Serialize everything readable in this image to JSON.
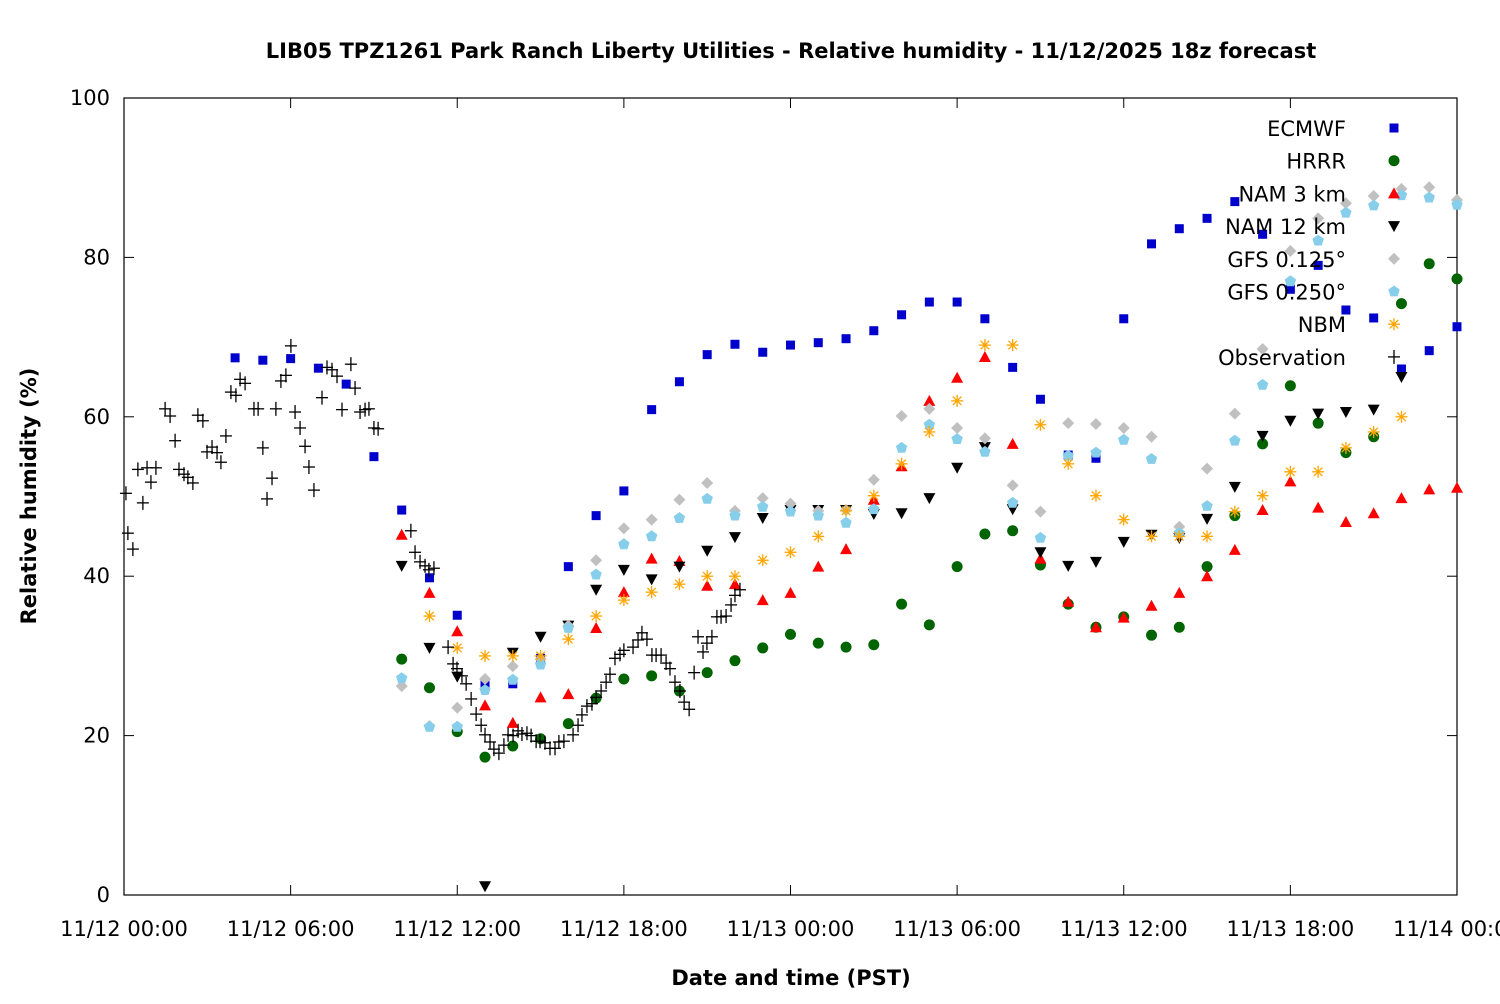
{
  "chart_data": {
    "type": "scatter",
    "title": "LIB05 TPZ1261 Park Ranch Liberty Utilities - Relative humidity - 11/12/2025 18z forecast",
    "xlabel": "Date and time (PST)",
    "ylabel": "Relative humidity (%)",
    "x_unit": "hours since 11/12 00:00",
    "xlim": [
      0,
      48
    ],
    "ylim": [
      0,
      100
    ],
    "grid": false,
    "legend_placement": "top-right",
    "x_ticks": [
      {
        "value": 0,
        "label": "11/12 00:00"
      },
      {
        "value": 6,
        "label": "11/12 06:00"
      },
      {
        "value": 12,
        "label": "11/12 12:00"
      },
      {
        "value": 18,
        "label": "11/12 18:00"
      },
      {
        "value": 24,
        "label": "11/13 00:00"
      },
      {
        "value": 30,
        "label": "11/13 06:00"
      },
      {
        "value": 36,
        "label": "11/13 12:00"
      },
      {
        "value": 42,
        "label": "11/13 18:00"
      },
      {
        "value": 48,
        "label": "11/14 00:00"
      }
    ],
    "y_ticks": [
      {
        "value": 0,
        "label": "0"
      },
      {
        "value": 20,
        "label": "20"
      },
      {
        "value": 40,
        "label": "40"
      },
      {
        "value": 60,
        "label": "60"
      },
      {
        "value": 80,
        "label": "80"
      },
      {
        "value": 100,
        "label": "100"
      }
    ],
    "series": [
      {
        "name": "ECMWF",
        "marker": "square",
        "color": "#0000cc",
        "start_hour": 4,
        "values": [
          67.4,
          67.1,
          67.3,
          66.1,
          64.1,
          55.0,
          48.3,
          39.8,
          35.1,
          26.5,
          26.5,
          29.7,
          41.2,
          47.6,
          50.7,
          60.9,
          64.4,
          67.8,
          69.1,
          68.1,
          69.0,
          69.3,
          69.8,
          70.8,
          72.8,
          74.4,
          74.4,
          72.3,
          66.2,
          62.2,
          55.2,
          54.8,
          72.3,
          81.7,
          83.6,
          84.9,
          87.0,
          82.9,
          76.0,
          79.0,
          73.4,
          72.4,
          66.0,
          68.3,
          71.3
        ]
      },
      {
        "name": "HRRR",
        "marker": "circle",
        "color": "#006400",
        "start_hour": 10,
        "values": [
          29.6,
          26.0,
          20.5,
          17.3,
          18.7,
          19.6,
          21.5,
          24.7,
          27.1,
          27.5,
          25.6,
          27.9,
          29.4,
          31.0,
          32.7,
          31.6,
          31.1,
          31.4,
          36.5,
          33.9,
          41.2,
          45.3,
          45.7,
          41.4,
          36.5,
          33.6,
          34.9,
          32.6,
          33.6,
          41.2,
          47.6,
          56.6,
          63.9,
          59.2,
          55.5,
          57.5,
          74.2,
          79.2,
          77.3
        ]
      },
      {
        "name": "NAM 3 km",
        "marker": "triangle-up",
        "color": "#ff0000",
        "start_hour": 10,
        "values": [
          45.2,
          37.9,
          33.1,
          23.8,
          21.6,
          24.8,
          25.2,
          33.5,
          38.0,
          42.2,
          41.9,
          38.8,
          39.0,
          37.0,
          37.9,
          41.2,
          43.4,
          49.6,
          53.8,
          62.0,
          64.9,
          67.5,
          56.6,
          42.2,
          36.8,
          33.6,
          34.8,
          36.3,
          37.9,
          40.0,
          43.3,
          48.3,
          51.9,
          48.6,
          46.8,
          47.9,
          49.8,
          50.9,
          51.1
        ]
      },
      {
        "name": "NAM 12 km",
        "marker": "triangle-down",
        "color": "#000000",
        "start_hour": 10,
        "values": [
          41.3,
          31.0,
          27.4,
          1.1,
          30.4,
          32.4,
          33.8,
          38.3,
          40.8,
          39.6,
          41.2,
          43.2,
          44.9,
          47.3,
          48.3,
          48.3,
          48.3,
          47.8,
          47.9,
          49.8,
          53.6,
          56.2,
          48.4,
          43.0,
          41.3,
          41.8,
          44.3,
          45.2,
          44.8,
          47.2,
          51.2,
          57.6,
          59.5,
          60.4,
          60.6,
          60.9,
          65.0
        ]
      },
      {
        "name": "GFS 0.125°",
        "marker": "diamond",
        "color": "#c0c0c0",
        "start_hour": 10,
        "values": [
          26.2,
          21.2,
          23.5,
          27.1,
          28.7,
          29.6,
          33.8,
          42.0,
          46.0,
          47.1,
          49.6,
          51.7,
          48.2,
          49.8,
          49.1,
          48.2,
          48.3,
          52.1,
          60.1,
          61.0,
          58.6,
          57.3,
          51.4,
          48.1,
          59.2,
          59.1,
          58.6,
          57.5,
          46.2,
          53.5,
          60.4,
          68.5,
          80.8,
          84.9,
          86.8,
          87.7,
          88.6,
          88.8,
          87.2
        ]
      },
      {
        "name": "GFS 0.250°",
        "marker": "pentagon",
        "color": "#87ceeb",
        "start_hour": 10,
        "values": [
          27.2,
          21.1,
          21.1,
          25.7,
          27.0,
          28.9,
          33.5,
          40.2,
          44.0,
          45.0,
          47.3,
          49.7,
          47.6,
          48.7,
          48.1,
          47.6,
          46.7,
          48.4,
          56.1,
          59.0,
          57.2,
          55.6,
          49.2,
          44.8,
          55.1,
          55.5,
          57.1,
          54.7,
          45.4,
          48.8,
          57.0,
          64.0,
          77.0,
          82.1,
          85.6,
          86.5,
          87.8,
          87.5,
          86.6
        ]
      },
      {
        "name": "NBM",
        "marker": "asterisk",
        "color": "#ffa500",
        "start_hour": 11,
        "values": [
          35.0,
          31.0,
          30.0,
          30.0,
          30.0,
          32.1,
          35.0,
          37.0,
          38.0,
          39.0,
          40.0,
          40.0,
          42.0,
          43.0,
          45.0,
          48.2,
          50.1,
          54.1,
          58.1,
          62.0,
          69.0,
          69.0,
          59.0,
          54.1,
          50.1,
          47.1,
          45.0,
          45.0,
          45.0,
          48.1,
          50.1,
          53.1,
          53.1,
          56.1,
          58.1,
          60.0
        ]
      },
      {
        "name": "Observation",
        "marker": "plus",
        "color": "#000000",
        "points": [
          [
            0.07,
            50.4
          ],
          [
            0.14,
            45.4
          ],
          [
            0.32,
            43.4
          ],
          [
            0.5,
            53.4
          ],
          [
            0.68,
            49.2
          ],
          [
            0.83,
            53.6
          ],
          [
            0.97,
            51.8
          ],
          [
            1.15,
            53.6
          ],
          [
            1.48,
            61.0
          ],
          [
            1.66,
            60.1
          ],
          [
            1.84,
            57.0
          ],
          [
            1.98,
            53.4
          ],
          [
            2.16,
            52.8
          ],
          [
            2.3,
            52.4
          ],
          [
            2.48,
            51.7
          ],
          [
            2.66,
            60.2
          ],
          [
            2.84,
            59.5
          ],
          [
            2.99,
            55.6
          ],
          [
            3.17,
            56.2
          ],
          [
            3.35,
            55.5
          ],
          [
            3.49,
            54.3
          ],
          [
            3.67,
            57.6
          ],
          [
            3.85,
            63.1
          ],
          [
            4.03,
            62.7
          ],
          [
            4.18,
            64.7
          ],
          [
            4.36,
            64.2
          ],
          [
            4.68,
            61.0
          ],
          [
            4.83,
            61.0
          ],
          [
            5.0,
            56.1
          ],
          [
            5.15,
            49.7
          ],
          [
            5.33,
            52.3
          ],
          [
            5.47,
            61.0
          ],
          [
            5.65,
            64.5
          ],
          [
            5.83,
            65.2
          ],
          [
            6.01,
            68.9
          ],
          [
            6.16,
            60.6
          ],
          [
            6.34,
            58.6
          ],
          [
            6.52,
            56.3
          ],
          [
            6.66,
            53.7
          ],
          [
            6.84,
            50.8
          ],
          [
            7.13,
            62.4
          ],
          [
            7.31,
            66.2
          ],
          [
            7.49,
            65.9
          ],
          [
            7.67,
            65.1
          ],
          [
            7.85,
            60.9
          ],
          [
            8.17,
            66.6
          ],
          [
            8.32,
            63.6
          ],
          [
            8.5,
            60.6
          ],
          [
            8.68,
            60.9
          ],
          [
            8.82,
            61.0
          ],
          [
            9.0,
            58.6
          ],
          [
            9.15,
            58.5
          ],
          [
            10.33,
            45.7
          ],
          [
            10.48,
            43.0
          ],
          [
            10.66,
            41.8
          ],
          [
            10.84,
            41.3
          ],
          [
            10.98,
            40.8
          ],
          [
            11.16,
            41.0
          ],
          [
            11.67,
            31.1
          ],
          [
            11.85,
            29.0
          ],
          [
            11.99,
            28.4
          ],
          [
            12.17,
            27.5
          ],
          [
            12.32,
            26.5
          ],
          [
            12.5,
            24.6
          ],
          [
            12.68,
            22.7
          ],
          [
            12.86,
            21.3
          ],
          [
            13.0,
            20.1
          ],
          [
            13.18,
            19.2
          ],
          [
            13.32,
            18.3
          ],
          [
            13.5,
            17.8
          ],
          [
            13.68,
            18.8
          ],
          [
            13.83,
            20.1
          ],
          [
            14.01,
            20.0
          ],
          [
            14.19,
            20.6
          ],
          [
            14.33,
            20.2
          ],
          [
            14.51,
            20.3
          ],
          [
            14.66,
            20.0
          ],
          [
            14.84,
            19.3
          ],
          [
            14.98,
            19.3
          ],
          [
            15.16,
            19.1
          ],
          [
            15.34,
            18.4
          ],
          [
            15.52,
            18.4
          ],
          [
            15.66,
            19.2
          ],
          [
            15.84,
            19.3
          ],
          [
            16.17,
            20.1
          ],
          [
            16.35,
            21.3
          ],
          [
            16.49,
            22.6
          ],
          [
            16.67,
            23.7
          ],
          [
            16.85,
            24.0
          ],
          [
            17.0,
            24.8
          ],
          [
            17.18,
            25.6
          ],
          [
            17.36,
            26.7
          ],
          [
            17.5,
            27.7
          ],
          [
            17.68,
            29.7
          ],
          [
            17.86,
            30.2
          ],
          [
            18.0,
            30.7
          ],
          [
            18.33,
            31.1
          ],
          [
            18.51,
            32.0
          ],
          [
            18.65,
            32.9
          ],
          [
            18.83,
            32.1
          ],
          [
            19.01,
            30.1
          ],
          [
            19.16,
            30.1
          ],
          [
            19.34,
            30.1
          ],
          [
            19.52,
            29.1
          ],
          [
            19.66,
            28.4
          ],
          [
            19.84,
            26.7
          ],
          [
            20.02,
            25.6
          ],
          [
            20.17,
            24.2
          ],
          [
            20.35,
            23.3
          ],
          [
            20.53,
            27.9
          ],
          [
            20.67,
            32.4
          ],
          [
            20.85,
            30.5
          ],
          [
            20.99,
            31.6
          ],
          [
            21.17,
            32.4
          ],
          [
            21.35,
            34.9
          ],
          [
            21.5,
            34.9
          ],
          [
            21.68,
            35.0
          ],
          [
            21.86,
            36.4
          ],
          [
            22.0,
            37.6
          ],
          [
            22.18,
            38.3
          ]
        ]
      }
    ]
  }
}
